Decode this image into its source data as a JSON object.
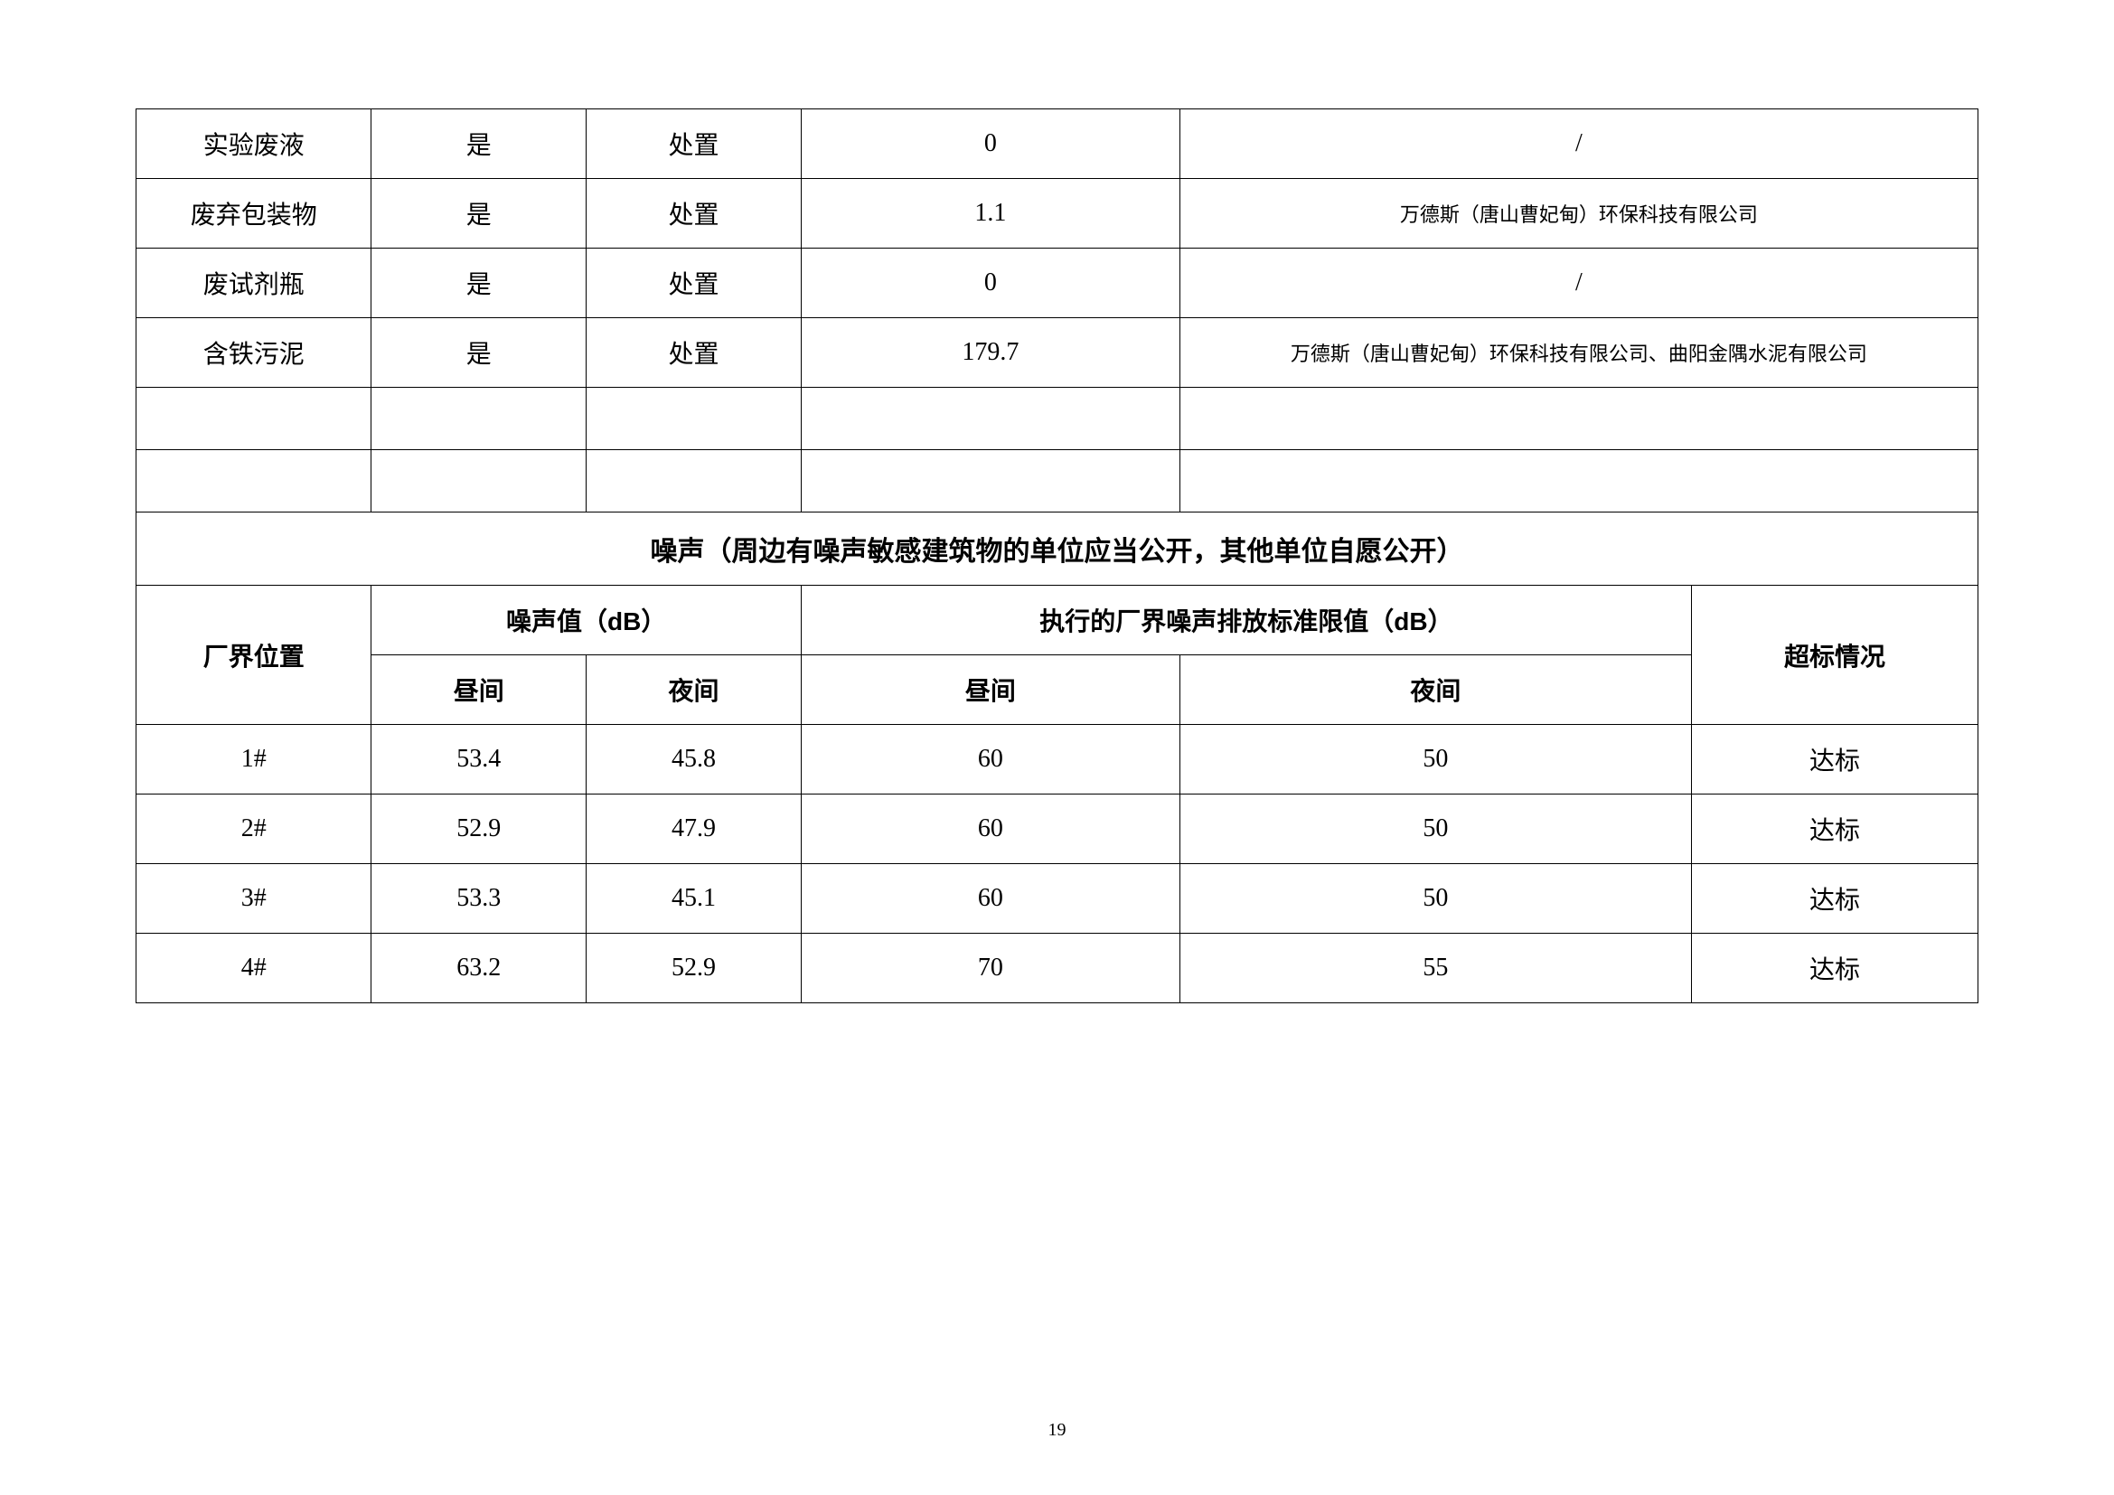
{
  "waste_table": {
    "rows": [
      {
        "name": "实验废液",
        "col2": "是",
        "col3": "处置",
        "col4": "0",
        "col5": "/"
      },
      {
        "name": "废弃包装物",
        "col2": "是",
        "col3": "处置",
        "col4": "1.1",
        "col5": "万德斯（唐山曹妃甸）环保科技有限公司"
      },
      {
        "name": "废试剂瓶",
        "col2": "是",
        "col3": "处置",
        "col4": "0",
        "col5": "/"
      },
      {
        "name": "含铁污泥",
        "col2": "是",
        "col3": "处置",
        "col4": "179.7",
        "col5": "万德斯（唐山曹妃甸）环保科技有限公司、曲阳金隅水泥有限公司"
      }
    ]
  },
  "noise_section_title": "噪声（周边有噪声敏感建筑物的单位应当公开，其他单位自愿公开）",
  "noise_headers": {
    "location": "厂界位置",
    "noise_value": "噪声值（dB）",
    "standard_value": "执行的厂界噪声排放标准限值（dB）",
    "exceed_status": "超标情况",
    "day": "昼间",
    "night": "夜间"
  },
  "noise_rows": [
    {
      "location": "1#",
      "day_val": "53.4",
      "night_val": "45.8",
      "day_std": "60",
      "night_std": "50",
      "status": "达标"
    },
    {
      "location": "2#",
      "day_val": "52.9",
      "night_val": "47.9",
      "day_std": "60",
      "night_std": "50",
      "status": "达标"
    },
    {
      "location": "3#",
      "day_val": "53.3",
      "night_val": "45.1",
      "day_std": "60",
      "night_std": "50",
      "status": "达标"
    },
    {
      "location": "4#",
      "day_val": "63.2",
      "night_val": "52.9",
      "day_std": "70",
      "night_std": "55",
      "status": "达标"
    }
  ],
  "page_number": "19"
}
